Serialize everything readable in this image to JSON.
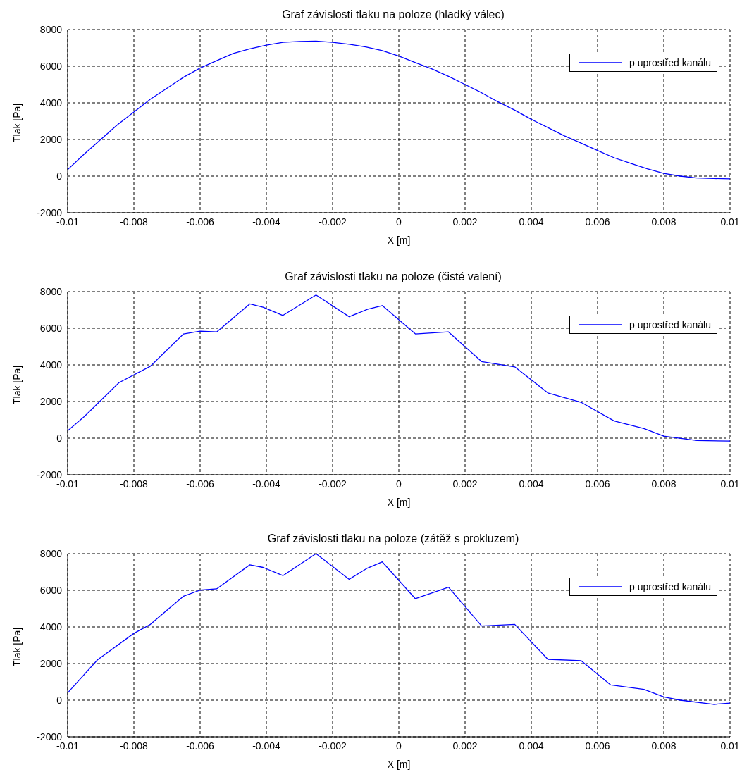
{
  "chart_data": [
    {
      "type": "line",
      "title": "Graf závislosti tlaku na poloze (hladký válec)",
      "xlabel": "X [m]",
      "ylabel": "Tlak [Pa]",
      "xlim": [
        -0.01,
        0.01
      ],
      "xticks": [
        -0.01,
        -0.008,
        -0.006,
        -0.004,
        -0.002,
        0,
        0.002,
        0.004,
        0.006,
        0.008,
        0.01
      ],
      "ylim": [
        -2000,
        8000
      ],
      "yticks": [
        -2000,
        0,
        2000,
        4000,
        6000,
        8000
      ],
      "grid": true,
      "legend": "top right",
      "marker": "none",
      "line_style": "solid",
      "x": [
        -0.01,
        -0.0095,
        -0.009,
        -0.0085,
        -0.008,
        -0.0075,
        -0.007,
        -0.0065,
        -0.006,
        -0.0055,
        -0.005,
        -0.0045,
        -0.004,
        -0.0035,
        -0.003,
        -0.0025,
        -0.002,
        -0.0015,
        -0.001,
        -0.0005,
        0,
        0.0005,
        0.001,
        0.0015,
        0.002,
        0.0025,
        0.003,
        0.0035,
        0.004,
        0.0045,
        0.005,
        0.0055,
        0.006,
        0.0065,
        0.007,
        0.0075,
        0.008,
        0.0085,
        0.009,
        0.0095,
        0.01
      ],
      "series": [
        {
          "name": "p uprostřed kanálu",
          "color": "#0000ff",
          "values": [
            350,
            1200,
            2000,
            2800,
            3500,
            4200,
            4800,
            5400,
            5900,
            6300,
            6700,
            6950,
            7150,
            7300,
            7350,
            7370,
            7300,
            7200,
            7050,
            6850,
            6550,
            6200,
            5850,
            5450,
            5000,
            4550,
            4050,
            3600,
            3100,
            2650,
            2200,
            1800,
            1400,
            1000,
            700,
            400,
            150,
            0,
            -100,
            -130,
            -150
          ]
        }
      ]
    },
    {
      "type": "line",
      "title": "Graf závislosti tlaku na poloze (čisté valení)",
      "xlabel": "X [m]",
      "ylabel": "Tlak [Pa]",
      "xlim": [
        -0.01,
        0.01
      ],
      "xticks": [
        -0.01,
        -0.008,
        -0.006,
        -0.004,
        -0.002,
        0,
        0.002,
        0.004,
        0.006,
        0.008,
        0.01
      ],
      "ylim": [
        -2000,
        8000
      ],
      "yticks": [
        -2000,
        0,
        2000,
        4000,
        6000,
        8000
      ],
      "grid": true,
      "legend": "top right",
      "marker": "none",
      "line_style": "solid",
      "x": [
        -0.01,
        -0.0095,
        -0.00845,
        -0.0075,
        -0.0065,
        -0.006,
        -0.0055,
        -0.0045,
        -0.0041,
        -0.0035,
        -0.0025,
        -0.0015,
        -0.00095,
        -0.0005,
        0.0005,
        0.0015,
        0.0025,
        0.0035,
        0.0045,
        0.0055,
        0.0065,
        0.0074,
        0.008,
        0.009,
        0.01
      ],
      "series": [
        {
          "name": "p uprostřed kanálu",
          "color": "#0000ff",
          "values": [
            400,
            1170,
            3030,
            3930,
            5690,
            5840,
            5800,
            7330,
            7150,
            6700,
            7820,
            6630,
            7030,
            7240,
            5690,
            5800,
            4180,
            3890,
            2470,
            1960,
            940,
            520,
            110,
            -130,
            -160
          ]
        }
      ]
    },
    {
      "type": "line",
      "title": "Graf závislosti tlaku na poloze (zátěž s prokluzem)",
      "xlabel": "X [m]",
      "ylabel": "Tlak [Pa]",
      "xlim": [
        -0.01,
        0.01
      ],
      "xticks": [
        -0.01,
        -0.008,
        -0.006,
        -0.004,
        -0.002,
        0,
        0.002,
        0.004,
        0.006,
        0.008,
        0.01
      ],
      "ylim": [
        -2000,
        8000
      ],
      "yticks": [
        -2000,
        0,
        2000,
        4000,
        6000,
        8000
      ],
      "grid": true,
      "legend": "top right",
      "marker": "none",
      "line_style": "solid",
      "x": [
        -0.01,
        -0.0091,
        -0.008,
        -0.0075,
        -0.0065,
        -0.006,
        -0.0055,
        -0.0045,
        -0.0041,
        -0.0035,
        -0.0025,
        -0.0015,
        -0.00095,
        -0.0005,
        0.0005,
        0.0015,
        0.0025,
        0.0035,
        0.0045,
        0.0055,
        0.0064,
        0.0074,
        0.008,
        0.0085,
        0.0095,
        0.01
      ],
      "series": [
        {
          "name": "p uprostřed kanálu",
          "color": "#0000ff",
          "values": [
            400,
            2200,
            3650,
            4140,
            5680,
            6010,
            6080,
            7390,
            7250,
            6800,
            8000,
            6600,
            7210,
            7550,
            5540,
            6170,
            4050,
            4140,
            2230,
            2160,
            830,
            590,
            180,
            0,
            -230,
            -160
          ]
        }
      ]
    }
  ]
}
